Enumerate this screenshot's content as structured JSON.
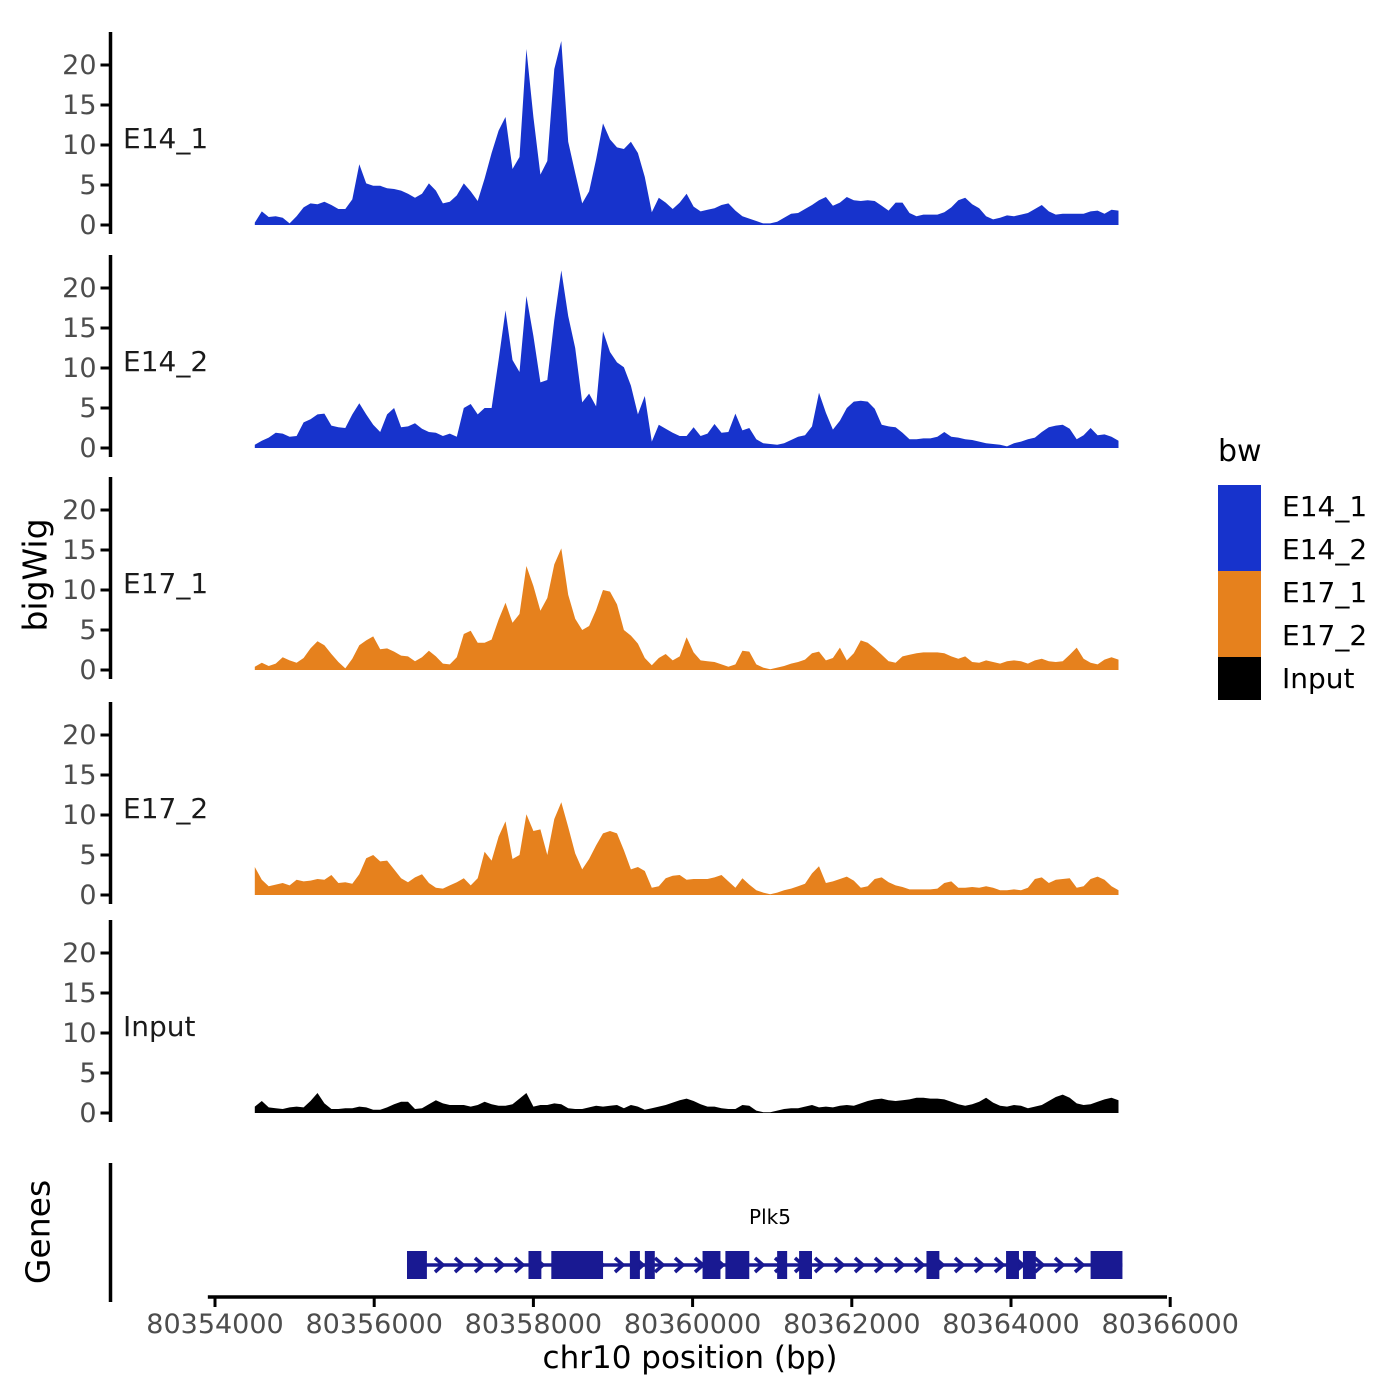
{
  "colors": {
    "blue": "#1733CC",
    "orange": "#E6811D",
    "black": "#000000",
    "gene_body": "#191992",
    "axis_line": "#000000",
    "axis_text": "#4D4D4D",
    "facet_text": "#1A1A1A"
  },
  "chart_data": {
    "type": "area",
    "xlabel": "chr10 position (bp)",
    "ylabel": "bigWig",
    "genes_panel_label": "Genes",
    "x_axis": {
      "ticks": [
        80354000,
        80356000,
        80358000,
        80360000,
        80362000,
        80364000,
        80366000
      ],
      "line_range_bp": [
        80353910,
        80365960
      ]
    },
    "y_axis": {
      "ticks": [
        0,
        5,
        10,
        15,
        20
      ]
    },
    "x_start": 80354500,
    "x_step": 87.5,
    "series": [
      {
        "name": "E14_1",
        "color": "#1733CC",
        "values": [
          0.3,
          1.7,
          1.0,
          1.1,
          0.9,
          0.2,
          1.1,
          2.2,
          2.7,
          2.6,
          2.9,
          2.5,
          2.0,
          2.0,
          3.2,
          7.6,
          5.2,
          4.9,
          4.9,
          4.6,
          4.5,
          4.3,
          3.9,
          3.4,
          3.9,
          5.2,
          4.3,
          2.7,
          2.9,
          3.7,
          5.2,
          4.2,
          3.0,
          5.8,
          9.0,
          11.8,
          13.5,
          7.0,
          8.5,
          22.0,
          13.5,
          6.3,
          8.0,
          19.5,
          23.0,
          10.4,
          6.5,
          2.7,
          4.2,
          8.2,
          12.7,
          10.7,
          9.7,
          9.5,
          10.4,
          9.0,
          6.0,
          1.6,
          3.4,
          2.8,
          2.0,
          2.8,
          3.9,
          2.3,
          1.7,
          1.9,
          2.1,
          2.5,
          2.7,
          1.8,
          1.1,
          0.8,
          0.5,
          0.2,
          0.2,
          0.4,
          0.9,
          1.4,
          1.5,
          2.0,
          2.5,
          3.1,
          3.5,
          2.4,
          2.8,
          3.5,
          3.1,
          3.0,
          3.1,
          3.0,
          2.4,
          1.8,
          2.8,
          2.8,
          1.5,
          1.1,
          1.3,
          1.3,
          1.3,
          1.6,
          2.2,
          3.1,
          3.4,
          2.6,
          2.1,
          1.1,
          0.7,
          0.9,
          1.2,
          1.1,
          1.3,
          1.5,
          2.0,
          2.5,
          1.7,
          1.3,
          1.4,
          1.4,
          1.4,
          1.4,
          1.7,
          1.8,
          1.4,
          1.9,
          1.8
        ]
      },
      {
        "name": "E14_2",
        "color": "#1733CC",
        "values": [
          0.4,
          0.9,
          1.3,
          1.9,
          1.8,
          1.4,
          1.5,
          3.2,
          3.6,
          4.2,
          4.3,
          2.8,
          2.6,
          2.5,
          4.2,
          5.6,
          4.2,
          2.9,
          2.0,
          4.2,
          5.0,
          2.6,
          2.7,
          3.1,
          2.4,
          2.0,
          1.9,
          1.5,
          1.8,
          1.4,
          5.0,
          5.5,
          4.2,
          5.0,
          5.0,
          11.0,
          17.2,
          11.0,
          9.5,
          19.0,
          14.0,
          8.2,
          8.5,
          16.0,
          22.2,
          16.5,
          12.5,
          5.7,
          6.8,
          5.2,
          14.6,
          12.0,
          10.7,
          10.1,
          7.8,
          4.2,
          6.5,
          0.8,
          2.9,
          2.4,
          1.9,
          1.5,
          1.5,
          2.6,
          1.5,
          1.8,
          3.0,
          1.9,
          2.0,
          4.3,
          2.2,
          2.5,
          1.1,
          0.6,
          0.5,
          0.4,
          0.6,
          1.0,
          1.4,
          1.6,
          2.7,
          6.9,
          4.4,
          2.3,
          3.4,
          5.0,
          5.8,
          5.9,
          5.8,
          4.9,
          2.9,
          2.7,
          2.6,
          1.9,
          1.1,
          1.1,
          1.2,
          1.2,
          1.4,
          2.0,
          1.4,
          1.3,
          1.1,
          1.0,
          0.8,
          0.6,
          0.5,
          0.4,
          0.2,
          0.6,
          0.8,
          1.1,
          1.3,
          2.0,
          2.6,
          2.8,
          2.9,
          2.4,
          1.1,
          1.6,
          2.5,
          1.6,
          1.7,
          1.4,
          0.9
        ]
      },
      {
        "name": "E17_1",
        "color": "#E6811D",
        "values": [
          0.4,
          0.9,
          0.5,
          0.8,
          1.6,
          1.2,
          0.9,
          1.5,
          2.7,
          3.6,
          3.1,
          2.0,
          1.0,
          0.2,
          1.4,
          3.1,
          3.7,
          4.2,
          2.6,
          2.7,
          2.3,
          1.8,
          1.7,
          1.1,
          1.6,
          2.4,
          1.7,
          0.8,
          0.7,
          1.6,
          4.5,
          4.9,
          3.4,
          3.4,
          3.8,
          6.3,
          8.4,
          5.9,
          7.0,
          13.0,
          10.5,
          7.4,
          9.0,
          13.2,
          15.2,
          9.4,
          6.4,
          5.0,
          5.5,
          7.5,
          10.0,
          9.8,
          8.2,
          5.0,
          4.3,
          3.3,
          1.5,
          0.6,
          1.5,
          2.0,
          1.2,
          1.7,
          4.1,
          2.2,
          1.2,
          1.1,
          1.0,
          0.7,
          0.4,
          0.7,
          2.4,
          2.3,
          0.7,
          0.3,
          0.1,
          0.3,
          0.5,
          0.8,
          1.0,
          1.3,
          2.1,
          2.3,
          1.2,
          1.5,
          2.8,
          1.2,
          2.1,
          3.7,
          3.4,
          2.7,
          1.9,
          1.1,
          0.9,
          1.7,
          1.9,
          2.1,
          2.2,
          2.2,
          2.2,
          2.1,
          1.7,
          1.4,
          1.7,
          1.0,
          0.9,
          1.2,
          1.0,
          0.8,
          1.1,
          1.2,
          1.1,
          0.8,
          1.2,
          1.4,
          1.1,
          1.0,
          1.1,
          1.9,
          2.8,
          1.4,
          0.9,
          0.7,
          1.3,
          1.6,
          1.3
        ]
      },
      {
        "name": "E17_2",
        "color": "#E6811D",
        "values": [
          3.5,
          1.9,
          1.1,
          1.3,
          1.5,
          1.2,
          1.9,
          1.7,
          1.8,
          2.0,
          1.9,
          2.5,
          1.5,
          1.6,
          1.4,
          2.6,
          4.6,
          5.0,
          4.2,
          4.3,
          3.2,
          2.1,
          1.6,
          2.2,
          2.6,
          1.5,
          0.9,
          0.8,
          1.2,
          1.6,
          2.1,
          1.2,
          2.1,
          5.4,
          4.3,
          7.3,
          9.2,
          4.5,
          5.0,
          10.1,
          8.0,
          8.2,
          5.0,
          9.5,
          11.6,
          8.5,
          5.2,
          3.2,
          4.5,
          6.2,
          7.7,
          8.0,
          7.7,
          5.6,
          3.2,
          3.5,
          3.0,
          0.9,
          1.1,
          2.1,
          2.4,
          2.5,
          1.9,
          2.0,
          2.0,
          2.0,
          2.2,
          2.5,
          1.7,
          0.9,
          2.1,
          1.3,
          0.6,
          0.3,
          0.1,
          0.3,
          0.6,
          0.8,
          1.1,
          1.4,
          2.7,
          3.6,
          1.5,
          1.7,
          2.0,
          2.3,
          1.8,
          0.9,
          1.1,
          2.0,
          2.2,
          1.6,
          1.2,
          1.0,
          0.7,
          0.7,
          0.7,
          0.7,
          0.8,
          1.5,
          1.7,
          0.9,
          0.9,
          1.0,
          0.9,
          1.1,
          0.9,
          0.6,
          0.6,
          0.7,
          0.6,
          0.9,
          2.0,
          2.2,
          1.5,
          1.9,
          2.0,
          2.1,
          0.9,
          1.1,
          2.0,
          2.3,
          1.9,
          1.1,
          0.6
        ]
      },
      {
        "name": "Input",
        "color": "#000000",
        "values": [
          0.8,
          1.5,
          0.7,
          0.6,
          0.5,
          0.7,
          0.8,
          0.7,
          1.5,
          2.5,
          1.2,
          0.5,
          0.5,
          0.6,
          0.6,
          0.8,
          0.7,
          0.4,
          0.4,
          0.7,
          1.1,
          1.4,
          1.4,
          0.5,
          0.6,
          1.1,
          1.6,
          1.2,
          1.0,
          1.0,
          1.0,
          0.8,
          1.0,
          1.4,
          1.1,
          0.9,
          0.9,
          1.1,
          1.8,
          2.5,
          0.8,
          1.0,
          1.0,
          1.2,
          1.1,
          0.6,
          0.5,
          0.5,
          0.7,
          0.9,
          0.8,
          0.9,
          1.0,
          0.6,
          1.0,
          0.8,
          0.4,
          0.6,
          0.8,
          1.0,
          1.3,
          1.6,
          1.8,
          1.5,
          1.1,
          0.8,
          0.8,
          0.6,
          0.5,
          0.5,
          1.0,
          0.9,
          0.3,
          0.1,
          0.1,
          0.3,
          0.5,
          0.6,
          0.6,
          0.8,
          1.0,
          0.7,
          0.8,
          0.7,
          0.9,
          1.0,
          0.9,
          1.2,
          1.5,
          1.7,
          1.8,
          1.6,
          1.5,
          1.6,
          1.7,
          1.9,
          1.9,
          1.8,
          1.8,
          1.7,
          1.4,
          1.1,
          0.9,
          1.1,
          1.4,
          1.9,
          1.3,
          0.9,
          0.8,
          1.0,
          0.9,
          0.6,
          0.8,
          1.0,
          1.5,
          2.0,
          2.3,
          1.9,
          1.2,
          1.0,
          1.1,
          1.4,
          1.7,
          1.9,
          1.6
        ]
      }
    ],
    "gene": {
      "name": "Plk5",
      "strand": "+",
      "start_bp": 80356412,
      "end_bp": 80365400,
      "exons_bp": [
        [
          80356412,
          80356662
        ],
        [
          80357938,
          80358100
        ],
        [
          80358225,
          80358875
        ],
        [
          80359212,
          80359338
        ],
        [
          80359400,
          80359525
        ],
        [
          80360125,
          80360350
        ],
        [
          80360412,
          80360712
        ],
        [
          80361062,
          80361188
        ],
        [
          80361338,
          80361500
        ],
        [
          80362938,
          80363100
        ],
        [
          80363938,
          80364100
        ],
        [
          80364150,
          80364312
        ],
        [
          80365000,
          80365400
        ]
      ]
    },
    "legend": {
      "title": "bw",
      "entries": [
        {
          "label": "E14_1",
          "color": "#1733CC"
        },
        {
          "label": "E14_2",
          "color": "#1733CC"
        },
        {
          "label": "E17_1",
          "color": "#E6811D"
        },
        {
          "label": "E17_2",
          "color": "#E6811D"
        },
        {
          "label": "Input",
          "color": "#000000"
        }
      ]
    }
  }
}
